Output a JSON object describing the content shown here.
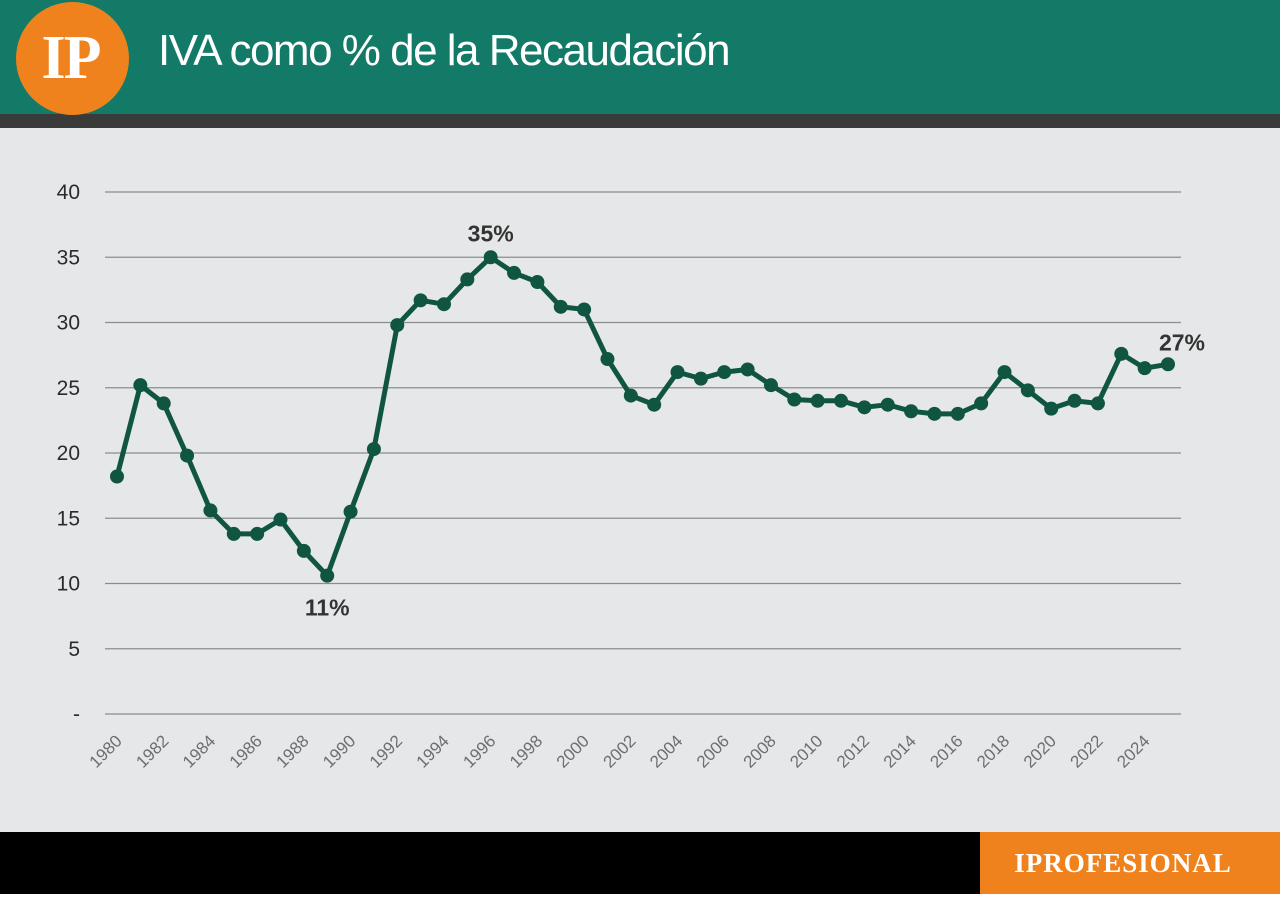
{
  "header": {
    "logo": "IP",
    "title": "IVA como % de la Recaudación"
  },
  "footer": {
    "brand": "IPROFESIONAL"
  },
  "colors": {
    "header_green": "#127a66",
    "orange": "#f0821e",
    "line": "#0f5542",
    "background": "#e6e7e8"
  },
  "chart_data": {
    "type": "line",
    "title": "IVA como % de la Recaudación",
    "xlabel": "",
    "ylabel": "",
    "ylim": [
      0,
      40
    ],
    "y_ticks": [
      {
        "value": 0,
        "label": "-"
      },
      {
        "value": 5,
        "label": "5"
      },
      {
        "value": 10,
        "label": "10"
      },
      {
        "value": 15,
        "label": "15"
      },
      {
        "value": 20,
        "label": "20"
      },
      {
        "value": 25,
        "label": "25"
      },
      {
        "value": 30,
        "label": "30"
      },
      {
        "value": 35,
        "label": "35"
      },
      {
        "value": 40,
        "label": "40"
      }
    ],
    "x_tick_labels": [
      "1980",
      "1982",
      "1984",
      "1986",
      "1988",
      "1990",
      "1992",
      "1994",
      "1996",
      "1998",
      "2000",
      "2002",
      "2004",
      "2006",
      "2008",
      "2010",
      "2012",
      "2014",
      "2016",
      "2018",
      "2020",
      "2022",
      "2024"
    ],
    "grid": true,
    "legend": "none",
    "x": [
      1980,
      1981,
      1982,
      1983,
      1984,
      1985,
      1986,
      1987,
      1988,
      1989,
      1990,
      1991,
      1992,
      1993,
      1994,
      1995,
      1996,
      1997,
      1998,
      1999,
      2000,
      2001,
      2002,
      2003,
      2004,
      2005,
      2006,
      2007,
      2008,
      2009,
      2010,
      2011,
      2012,
      2013,
      2014,
      2015,
      2016,
      2017,
      2018,
      2019,
      2020,
      2021,
      2022,
      2023,
      2024,
      2025
    ],
    "values": [
      18.2,
      25.2,
      23.8,
      19.8,
      15.6,
      13.8,
      13.8,
      14.9,
      12.5,
      10.6,
      15.5,
      20.3,
      29.8,
      31.7,
      31.4,
      33.3,
      35.0,
      33.8,
      33.1,
      31.2,
      31.0,
      27.2,
      24.4,
      23.7,
      26.2,
      25.7,
      26.2,
      26.4,
      25.2,
      24.1,
      24.0,
      24.0,
      23.5,
      23.7,
      23.2,
      23.0,
      23.0,
      23.8,
      26.2,
      24.8,
      23.4,
      24.0,
      23.8,
      27.6,
      26.5,
      26.8
    ],
    "annotations": [
      {
        "text": "35%",
        "x": 1996,
        "y": 35.0,
        "position": "above"
      },
      {
        "text": "11%",
        "x": 1989,
        "y": 10.6,
        "position": "below"
      },
      {
        "text": "27%",
        "x": 2025,
        "y": 26.8,
        "position": "above"
      }
    ]
  }
}
